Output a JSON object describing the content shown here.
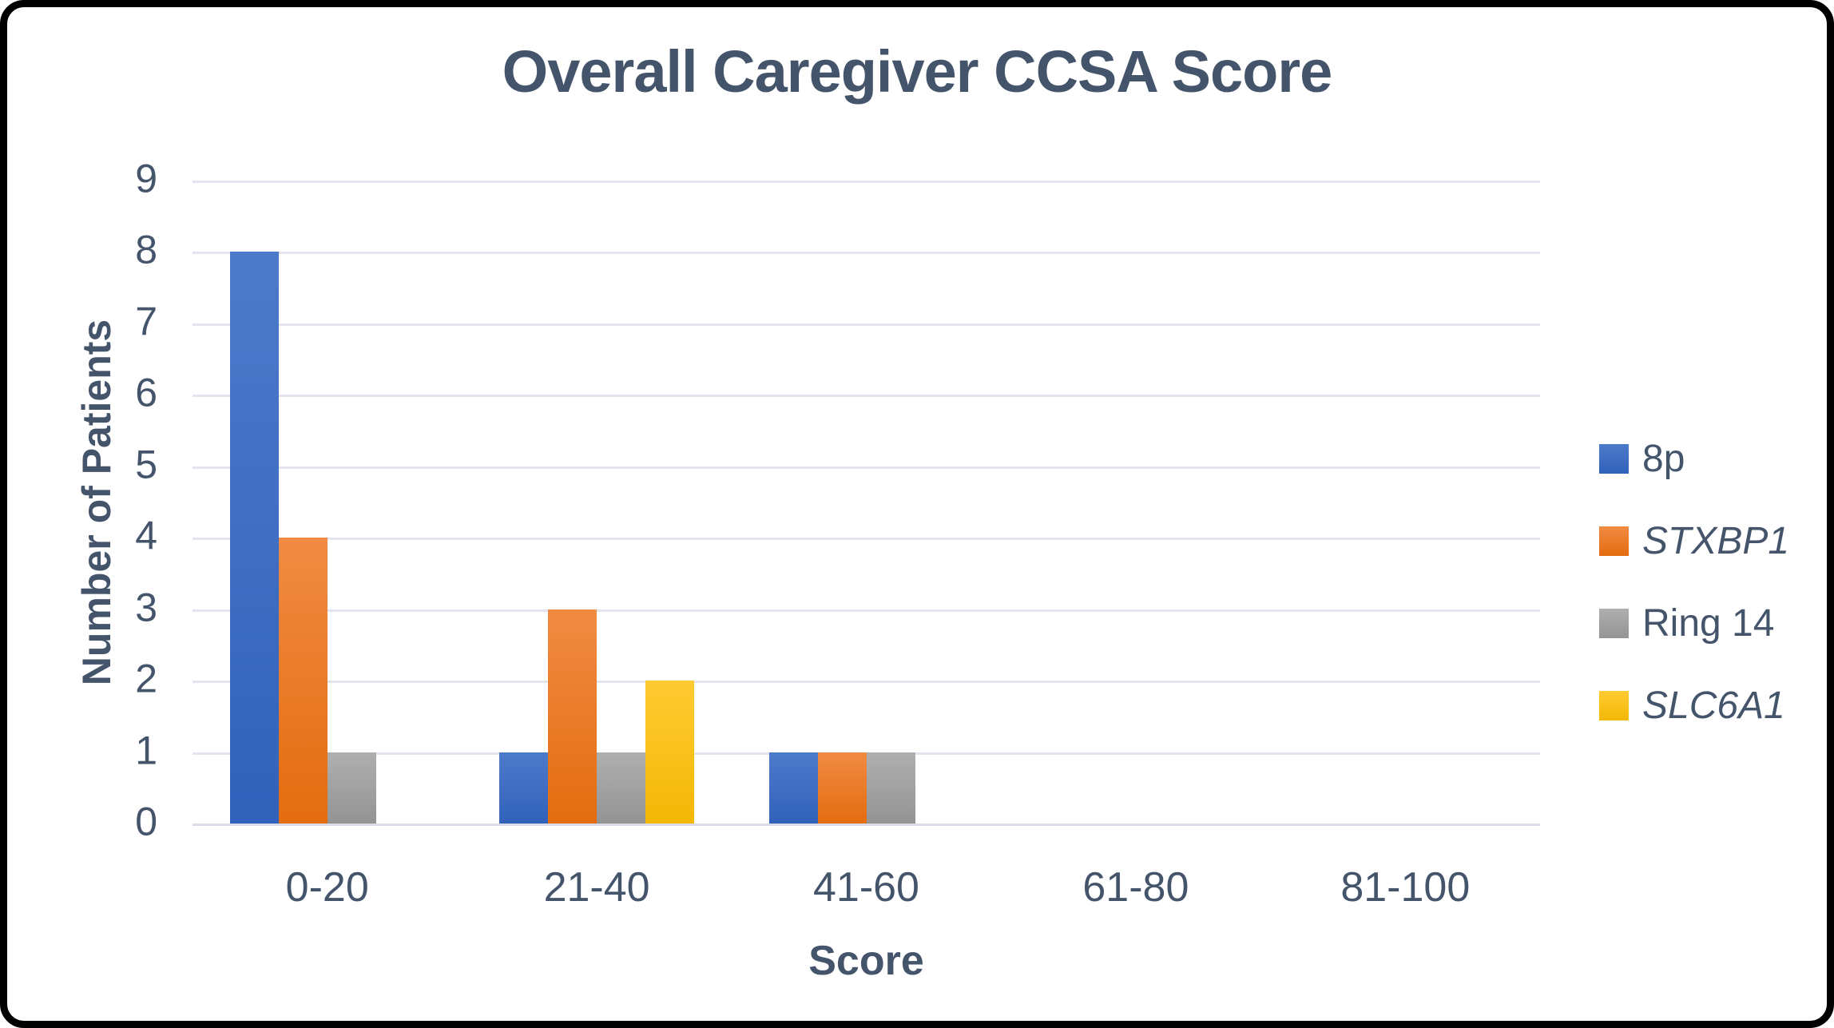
{
  "frame": {
    "background": "#ffffff",
    "border_color": "#000000",
    "text_color": "#44546A",
    "gridline_color": "#E2E5EE",
    "axis_color": "#D8DDE8"
  },
  "chart_data": {
    "type": "bar",
    "title": "Overall Caregiver CCSA Score",
    "xlabel": "Score",
    "ylabel": "Number of Patients",
    "categories": [
      "0-20",
      "21-40",
      "41-60",
      "61-80",
      "81-100"
    ],
    "series": [
      {
        "name": "8p",
        "italic": false,
        "color": "#4472C4",
        "color_top": "#4D7BCB",
        "color_bottom": "#3161BA",
        "values": [
          8,
          1,
          1,
          0,
          0
        ]
      },
      {
        "name": "STXBP1",
        "italic": true,
        "color": "#ED7D31",
        "color_top": "#F18B43",
        "color_bottom": "#E36C0F",
        "values": [
          4,
          3,
          1,
          0,
          0
        ]
      },
      {
        "name": "Ring 14",
        "italic": false,
        "color": "#A5A5A5",
        "color_top": "#AFAFAF",
        "color_bottom": "#949494",
        "values": [
          1,
          1,
          1,
          0,
          0
        ]
      },
      {
        "name": "SLC6A1",
        "italic": true,
        "color": "#FFC000",
        "color_top": "#FFCB32",
        "color_bottom": "#F3B705",
        "values": [
          0,
          2,
          0,
          0,
          0
        ]
      }
    ],
    "y_ticks": [
      0,
      1,
      2,
      3,
      4,
      5,
      6,
      7,
      8,
      9
    ],
    "ylim": [
      0,
      9
    ],
    "grid": true,
    "legend_position": "right"
  }
}
